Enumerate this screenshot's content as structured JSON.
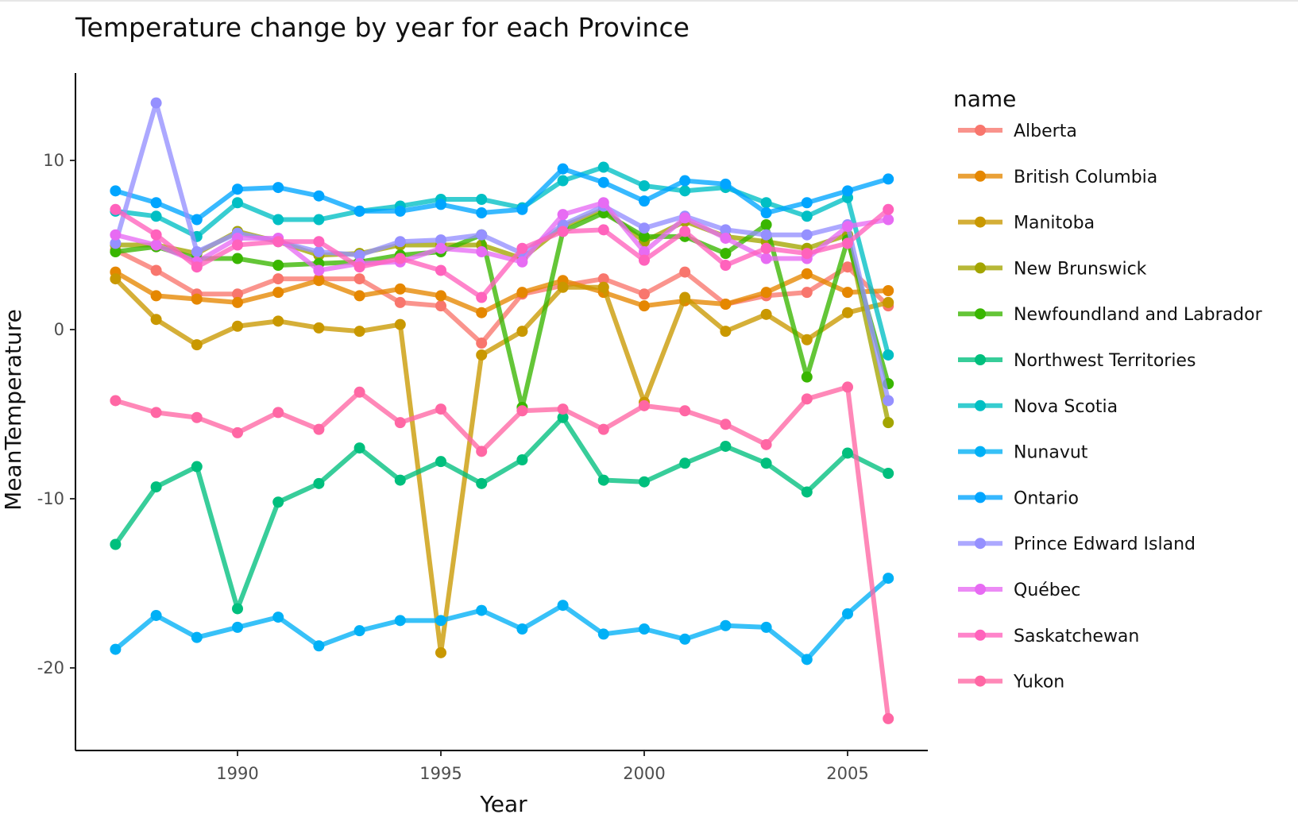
{
  "chart_data": {
    "type": "line",
    "title": "Temperature change by year for each Province",
    "xlabel": "Year",
    "ylabel": "MeanTemperature",
    "xlim": [
      1986,
      2007
    ],
    "ylim": [
      -25,
      15
    ],
    "xticks": [
      1990,
      1995,
      2000,
      2005
    ],
    "yticks": [
      -20,
      -10,
      0,
      10
    ],
    "grid": false,
    "legend_title": "name",
    "legend_position": "right",
    "x": [
      1987,
      1988,
      1989,
      1990,
      1991,
      1992,
      1993,
      1994,
      1995,
      1996,
      1997,
      1998,
      1999,
      2000,
      2001,
      2002,
      2003,
      2004,
      2005,
      2006
    ],
    "series": [
      {
        "name": "Alberta",
        "color": "#F8766D",
        "values": [
          4.7,
          3.5,
          2.1,
          2.1,
          3.0,
          3.0,
          3.0,
          1.6,
          1.4,
          -0.8,
          2.1,
          2.6,
          3.0,
          2.1,
          3.4,
          1.5,
          2.0,
          2.2,
          3.7,
          1.4
        ]
      },
      {
        "name": "British Columbia",
        "color": "#E58700",
        "values": [
          3.4,
          2.0,
          1.8,
          1.6,
          2.2,
          2.9,
          2.0,
          2.4,
          2.0,
          1.0,
          2.2,
          2.9,
          2.2,
          1.4,
          1.7,
          1.5,
          2.2,
          3.3,
          2.2,
          2.3
        ]
      },
      {
        "name": "Manitoba",
        "color": "#C99800",
        "values": [
          3.0,
          0.6,
          -0.9,
          0.2,
          0.5,
          0.1,
          -0.1,
          0.3,
          -19.1,
          -1.5,
          -0.1,
          2.5,
          2.5,
          -4.3,
          1.9,
          -0.1,
          0.9,
          -0.6,
          1.0,
          1.6
        ]
      },
      {
        "name": "New Brunswick",
        "color": "#A3A500",
        "values": [
          5.0,
          5.0,
          4.5,
          5.8,
          5.2,
          4.4,
          4.5,
          5.0,
          5.0,
          5.0,
          4.2,
          6.1,
          7.1,
          5.2,
          6.4,
          5.5,
          5.2,
          4.8,
          5.6,
          -5.5
        ]
      },
      {
        "name": "Newfoundland and Labrador",
        "color": "#39B600",
        "values": [
          4.6,
          4.9,
          4.2,
          4.2,
          3.8,
          3.9,
          4.0,
          4.4,
          4.6,
          5.6,
          -4.6,
          5.8,
          6.9,
          5.5,
          5.5,
          4.5,
          6.2,
          -2.8,
          5.3,
          -3.2
        ]
      },
      {
        "name": "Northwest Territories",
        "color": "#00BF7D",
        "values": [
          -12.7,
          -9.3,
          -8.1,
          -16.5,
          -10.2,
          -9.1,
          -7.0,
          -8.9,
          -7.8,
          -9.1,
          -7.7,
          -5.2,
          -8.9,
          -9.0,
          -7.9,
          -6.9,
          -7.9,
          -9.6,
          -7.3,
          -8.5
        ]
      },
      {
        "name": "Nova Scotia",
        "color": "#00BFC4",
        "values": [
          7.0,
          6.7,
          5.5,
          7.5,
          6.5,
          6.5,
          7.0,
          7.3,
          7.7,
          7.7,
          7.2,
          8.8,
          9.6,
          8.5,
          8.2,
          8.4,
          7.5,
          6.7,
          7.8,
          -1.5
        ]
      },
      {
        "name": "Nunavut",
        "color": "#00B0F6",
        "values": [
          -18.9,
          -16.9,
          -18.2,
          -17.6,
          -17.0,
          -18.7,
          -17.8,
          -17.2,
          -17.2,
          -16.6,
          -17.7,
          -16.3,
          -18.0,
          -17.7,
          -18.3,
          -17.5,
          -17.6,
          -19.5,
          -16.8,
          -14.7
        ]
      },
      {
        "name": "Ontario",
        "color": "#00A5FF",
        "values": [
          8.2,
          7.5,
          6.5,
          8.3,
          8.4,
          7.9,
          7.0,
          7.0,
          7.4,
          6.9,
          7.1,
          9.5,
          8.7,
          7.6,
          8.8,
          8.6,
          6.9,
          7.5,
          8.2,
          8.9
        ]
      },
      {
        "name": "Prince Edward Island",
        "color": "#9590FF",
        "values": [
          5.1,
          13.4,
          4.6,
          5.7,
          5.2,
          4.6,
          4.4,
          5.2,
          5.3,
          5.6,
          4.5,
          6.2,
          7.3,
          6.0,
          6.7,
          5.9,
          5.6,
          5.6,
          6.2,
          -4.2
        ]
      },
      {
        "name": "Québec",
        "color": "#E76BF3",
        "values": [
          5.6,
          5.0,
          4.0,
          5.4,
          5.4,
          3.5,
          3.9,
          4.0,
          4.8,
          4.6,
          4.0,
          6.8,
          7.5,
          4.6,
          6.6,
          5.4,
          4.2,
          4.2,
          6.1,
          6.5
        ]
      },
      {
        "name": "Saskatchewan",
        "color": "#FF62BC",
        "values": [
          7.1,
          5.6,
          3.7,
          5.0,
          5.2,
          5.2,
          3.7,
          4.2,
          3.5,
          1.9,
          4.8,
          5.8,
          5.9,
          4.1,
          5.8,
          3.8,
          4.8,
          4.5,
          5.1,
          7.1
        ]
      },
      {
        "name": "Yukon",
        "color": "#FF67A4",
        "values": [
          -4.2,
          -4.9,
          -5.2,
          -6.1,
          -4.9,
          -5.9,
          -3.7,
          -5.5,
          -4.7,
          -7.2,
          -4.8,
          -4.7,
          -5.9,
          -4.5,
          -4.8,
          -5.6,
          -6.8,
          -4.1,
          -3.4,
          -23.0
        ]
      }
    ]
  }
}
